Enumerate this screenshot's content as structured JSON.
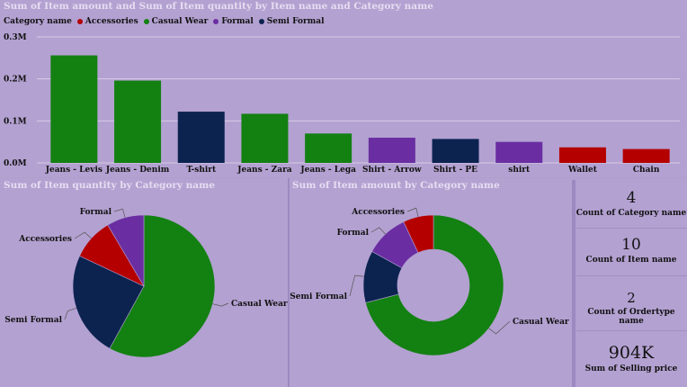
{
  "colors": {
    "Accessories": "#b50000",
    "Casual Wear": "#138012",
    "Formal": "#6a2ea2",
    "Semi Formal": "#0c2350"
  },
  "top_chart": {
    "title": "Sum of Item amount and Sum of Item quantity by Item name and Category name",
    "legend_title": "Category name"
  },
  "pie_chart": {
    "title": "Sum of Item quantity by Category name"
  },
  "donut_chart": {
    "title": "Sum of Item amount by Category name"
  },
  "cards": [
    {
      "value": "4",
      "label": "Count of Category name"
    },
    {
      "value": "10",
      "label": "Count of Item name"
    },
    {
      "value": "2",
      "label": "Count of Ordertype name"
    },
    {
      "value": "904K",
      "label": "Sum of Selling price"
    }
  ],
  "chart_data": [
    {
      "type": "bar",
      "title": "Sum of Item amount and Sum of Item quantity by Item name and Category name",
      "legend": [
        "Accessories",
        "Casual Wear",
        "Formal",
        "Semi Formal"
      ],
      "legend_position": "top-left",
      "categories": [
        "Jeans - Levis",
        "Jeans - Denim",
        "T-shirt",
        "Jeans - Zara",
        "Jeans - Lega",
        "Shirt - Arrow",
        "Shirt - PE",
        "shirt",
        "Wallet",
        "Chain"
      ],
      "category_group": [
        "Casual Wear",
        "Casual Wear",
        "Semi Formal",
        "Casual Wear",
        "Casual Wear",
        "Formal",
        "Semi Formal",
        "Formal",
        "Accessories",
        "Accessories"
      ],
      "values": [
        256000,
        196000,
        122000,
        117000,
        70000,
        60000,
        57000,
        50000,
        37000,
        33000
      ],
      "yticks": [
        "0.0M",
        "0.1M",
        "0.2M",
        "0.3M"
      ],
      "ylim": [
        0,
        300000
      ],
      "grid": true
    },
    {
      "type": "pie",
      "title": "Sum of Item quantity by Category name",
      "labels": [
        "Casual Wear",
        "Semi Formal",
        "Accessories",
        "Formal"
      ],
      "values": [
        58,
        24,
        9.5,
        8.5
      ]
    },
    {
      "type": "pie",
      "donut": true,
      "title": "Sum of Item amount by Category name",
      "labels": [
        "Casual Wear",
        "Semi Formal",
        "Formal",
        "Accessories"
      ],
      "values": [
        71,
        12,
        10,
        7
      ]
    }
  ]
}
